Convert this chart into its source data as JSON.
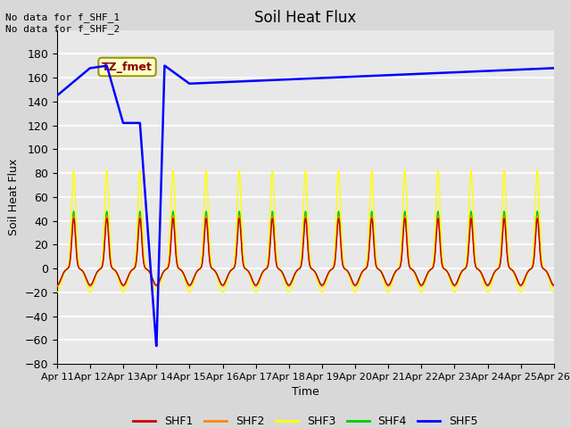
{
  "title": "Soil Heat Flux",
  "xlabel": "Time",
  "ylabel": "Soil Heat Flux",
  "annotation_text": "No data for f_SHF_1\nNo data for f_SHF_2",
  "legend_label": "TZ_fmet",
  "x_tick_labels": [
    "Apr 11",
    "Apr 12",
    "Apr 13",
    "Apr 14",
    "Apr 15",
    "Apr 16",
    "Apr 17",
    "Apr 18",
    "Apr 19",
    "Apr 20",
    "Apr 21",
    "Apr 22",
    "Apr 23",
    "Apr 24",
    "Apr 25",
    "Apr 26"
  ],
  "ylim": [
    -80,
    200
  ],
  "yticks": [
    -80,
    -60,
    -40,
    -20,
    0,
    20,
    40,
    60,
    80,
    100,
    120,
    140,
    160,
    180
  ],
  "colors": {
    "SHF1": "#cc0000",
    "SHF2": "#ff8800",
    "SHF3": "#ffff00",
    "SHF4": "#00cc00",
    "SHF5": "#0000ff"
  },
  "fig_bg": "#e8e8e8",
  "plot_bg": "#e8e8e8",
  "legend_bg": "#ffffcc",
  "legend_border": "#999900"
}
